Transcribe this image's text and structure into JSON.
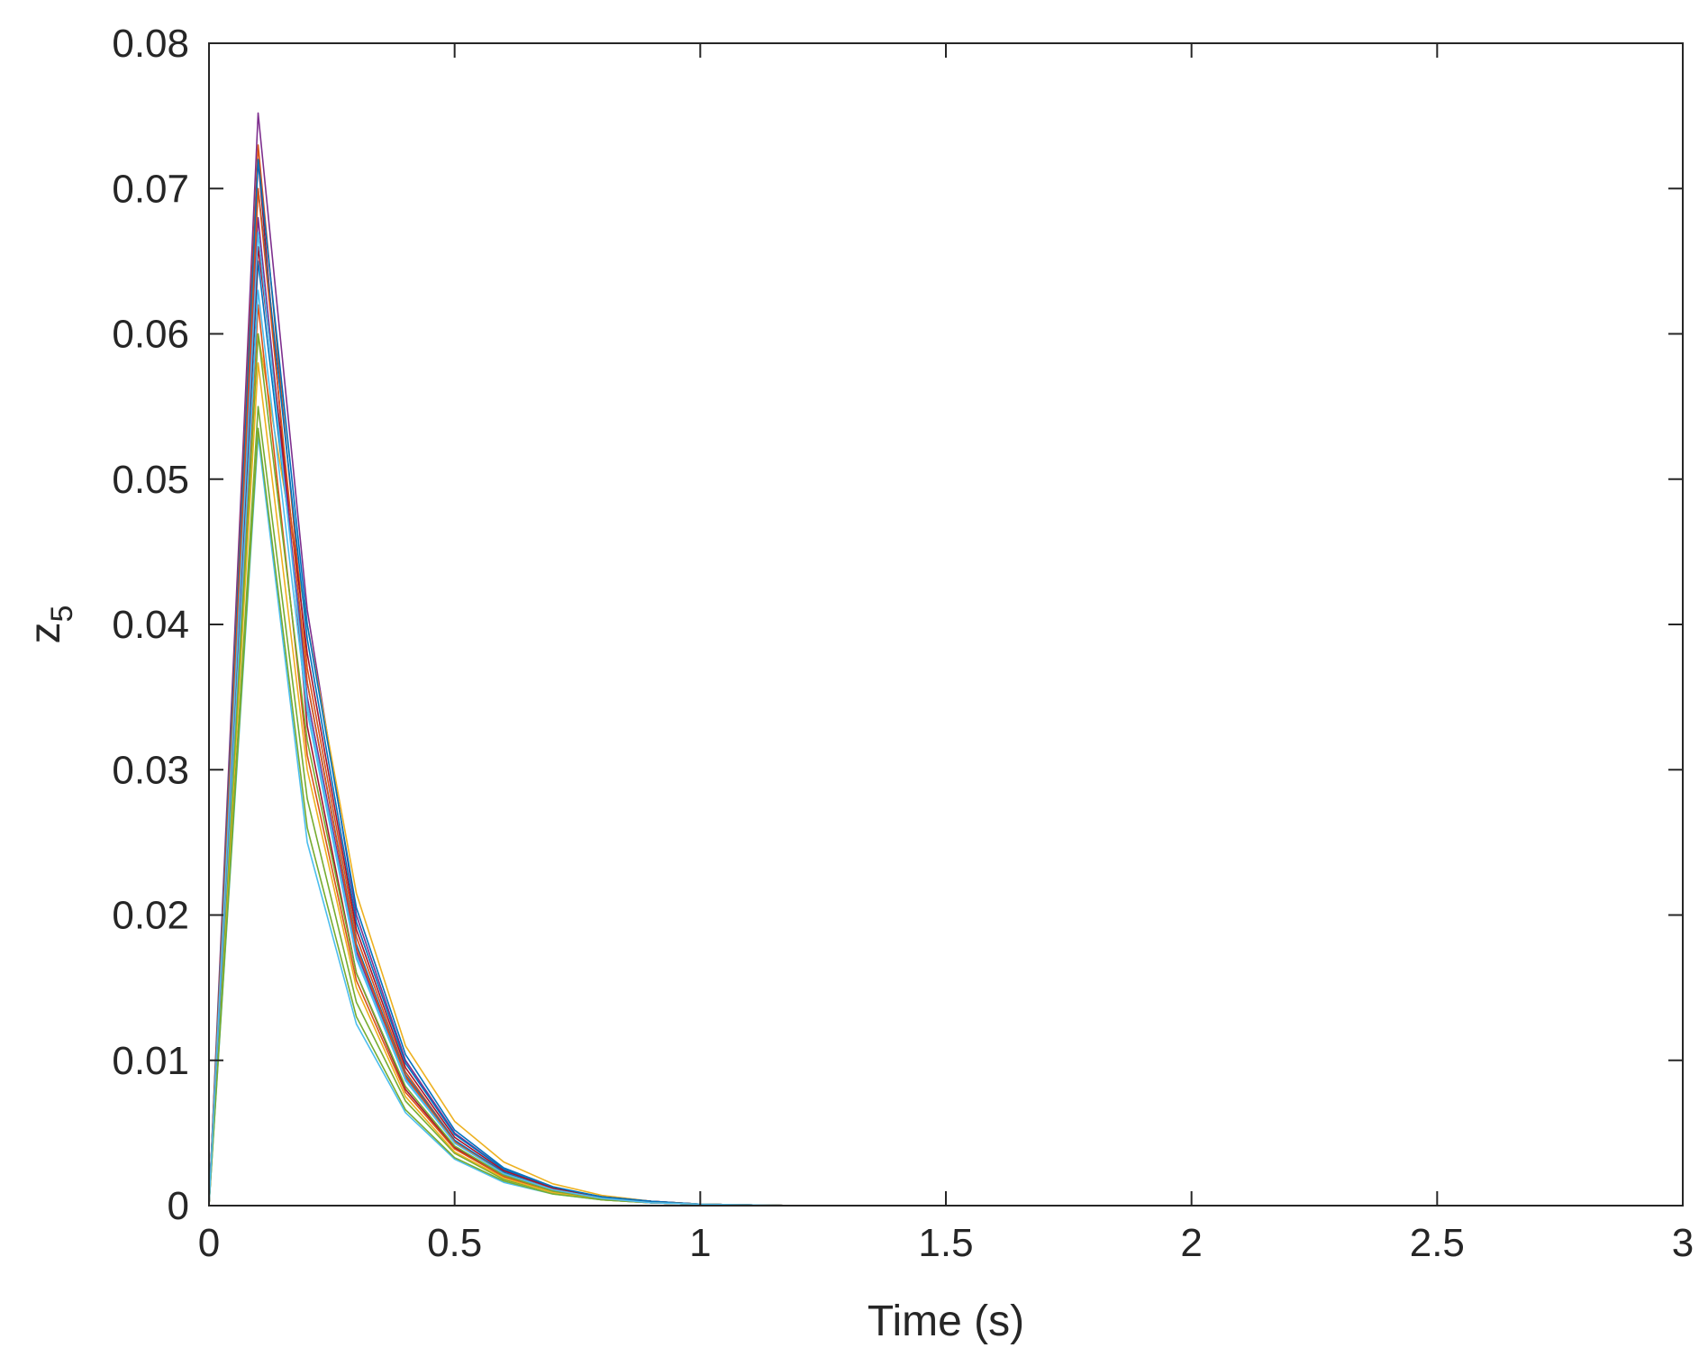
{
  "chart_data": {
    "type": "line",
    "title": "",
    "xlabel": "Time (s)",
    "ylabel_main": "z",
    "ylabel_sub": "5",
    "xlim": [
      0,
      3
    ],
    "ylim": [
      0,
      0.08
    ],
    "grid": false,
    "legend": "none",
    "x_ticks": [
      "0",
      "0.5",
      "1",
      "1.5",
      "2",
      "2.5",
      "3"
    ],
    "y_ticks": [
      "0",
      "0.01",
      "0.02",
      "0.03",
      "0.04",
      "0.05",
      "0.06",
      "0.07",
      "0.08"
    ],
    "x": [
      0,
      0.1,
      0.2,
      0.3,
      0.4,
      0.5,
      0.6,
      0.7,
      0.8,
      0.9,
      1.0,
      1.2,
      1.5,
      2.0,
      2.5,
      3.0
    ],
    "series": [
      {
        "color": "#7E2F8E",
        "values": [
          0,
          0.0752,
          0.041,
          0.02,
          0.01,
          0.005,
          0.0025,
          0.0012,
          0.0006,
          0.0003,
          0.0001,
          0,
          0,
          0,
          0,
          0
        ]
      },
      {
        "color": "#EDB120",
        "values": [
          0,
          0.06,
          0.04,
          0.0215,
          0.011,
          0.0058,
          0.003,
          0.0015,
          0.0007,
          0.0003,
          0.0001,
          0,
          0,
          0,
          0,
          0
        ]
      },
      {
        "color": "#D95319",
        "values": [
          0,
          0.073,
          0.037,
          0.0185,
          0.0092,
          0.0045,
          0.0022,
          0.0011,
          0.0005,
          0.0002,
          0.0001,
          0,
          0,
          0,
          0,
          0
        ]
      },
      {
        "color": "#A2142F",
        "values": [
          0,
          0.072,
          0.033,
          0.016,
          0.008,
          0.004,
          0.002,
          0.001,
          0.0005,
          0.0002,
          0.0001,
          0,
          0,
          0,
          0,
          0
        ]
      },
      {
        "color": "#0072BD",
        "values": [
          0,
          0.07,
          0.039,
          0.0195,
          0.0098,
          0.0049,
          0.0025,
          0.0012,
          0.0006,
          0.0003,
          0.0001,
          0,
          0,
          0,
          0,
          0
        ]
      },
      {
        "color": "#77AC30",
        "values": [
          0,
          0.055,
          0.028,
          0.014,
          0.0072,
          0.0036,
          0.0018,
          0.0009,
          0.0004,
          0.0002,
          0.0001,
          0,
          0,
          0,
          0,
          0
        ]
      },
      {
        "color": "#4DBEEE",
        "values": [
          0,
          0.053,
          0.025,
          0.0125,
          0.0064,
          0.0032,
          0.0016,
          0.0008,
          0.0004,
          0.0002,
          0.0001,
          0,
          0,
          0,
          0,
          0
        ]
      },
      {
        "color": "#0072BD",
        "values": [
          0,
          0.065,
          0.036,
          0.018,
          0.009,
          0.0045,
          0.0023,
          0.0011,
          0.0005,
          0.0002,
          0.0001,
          0,
          0,
          0,
          0,
          0
        ]
      },
      {
        "color": "#D95319",
        "values": [
          0,
          0.062,
          0.031,
          0.0155,
          0.0078,
          0.0039,
          0.002,
          0.001,
          0.0005,
          0.0002,
          0.0001,
          0,
          0,
          0,
          0,
          0
        ]
      },
      {
        "color": "#EDB120",
        "values": [
          0,
          0.058,
          0.03,
          0.015,
          0.0075,
          0.0037,
          0.0019,
          0.0009,
          0.0004,
          0.0002,
          0.0001,
          0,
          0,
          0,
          0,
          0
        ]
      },
      {
        "color": "#7E2F8E",
        "values": [
          0,
          0.068,
          0.035,
          0.0175,
          0.0088,
          0.0044,
          0.0022,
          0.0011,
          0.0005,
          0.0002,
          0.0001,
          0,
          0,
          0,
          0,
          0
        ]
      },
      {
        "color": "#77AC30",
        "values": [
          0,
          0.06,
          0.032,
          0.016,
          0.0082,
          0.0041,
          0.0021,
          0.001,
          0.0005,
          0.0002,
          0.0001,
          0,
          0,
          0,
          0,
          0
        ]
      },
      {
        "color": "#4DBEEE",
        "values": [
          0,
          0.063,
          0.034,
          0.017,
          0.0086,
          0.0043,
          0.0022,
          0.0011,
          0.0005,
          0.0002,
          0.0001,
          0,
          0,
          0,
          0,
          0
        ]
      },
      {
        "color": "#A2142F",
        "values": [
          0,
          0.066,
          0.038,
          0.019,
          0.0095,
          0.0047,
          0.0024,
          0.0012,
          0.0006,
          0.0003,
          0.0001,
          0,
          0,
          0,
          0,
          0
        ]
      },
      {
        "color": "#0072BD",
        "values": [
          0,
          0.072,
          0.04,
          0.0205,
          0.0104,
          0.0052,
          0.0026,
          0.0013,
          0.0006,
          0.0003,
          0.0001,
          0,
          0,
          0,
          0,
          0
        ]
      },
      {
        "color": "#77AC30",
        "values": [
          0,
          0.0535,
          0.026,
          0.013,
          0.0066,
          0.0033,
          0.0017,
          0.0008,
          0.0004,
          0.0002,
          0.0001,
          0,
          0,
          0,
          0,
          0
        ]
      },
      {
        "color": "#D95319",
        "values": [
          0,
          0.07,
          0.036,
          0.0178,
          0.0089,
          0.0044,
          0.0022,
          0.0011,
          0.0005,
          0.0002,
          0.0001,
          0,
          0,
          0,
          0,
          0
        ]
      },
      {
        "color": "#4DBEEE",
        "values": [
          0,
          0.067,
          0.0345,
          0.0172,
          0.0087,
          0.0043,
          0.0022,
          0.0011,
          0.0005,
          0.0002,
          0.0001,
          0,
          0,
          0,
          0,
          0
        ]
      }
    ]
  }
}
